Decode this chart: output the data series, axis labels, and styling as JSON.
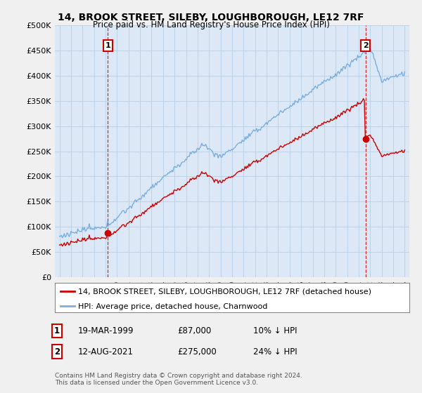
{
  "title": "14, BROOK STREET, SILEBY, LOUGHBOROUGH, LE12 7RF",
  "subtitle": "Price paid vs. HM Land Registry's House Price Index (HPI)",
  "legend_label_red": "14, BROOK STREET, SILEBY, LOUGHBOROUGH, LE12 7RF (detached house)",
  "legend_label_blue": "HPI: Average price, detached house, Charnwood",
  "footnote": "Contains HM Land Registry data © Crown copyright and database right 2024.\nThis data is licensed under the Open Government Licence v3.0.",
  "annotation1_label": "1",
  "annotation1_date": "19-MAR-1999",
  "annotation1_price": "£87,000",
  "annotation1_hpi": "10% ↓ HPI",
  "annotation2_label": "2",
  "annotation2_date": "12-AUG-2021",
  "annotation2_price": "£275,000",
  "annotation2_hpi": "24% ↓ HPI",
  "ylim": [
    0,
    500000
  ],
  "yticks": [
    0,
    50000,
    100000,
    150000,
    200000,
    250000,
    300000,
    350000,
    400000,
    450000,
    500000
  ],
  "ytick_labels": [
    "£0",
    "£50K",
    "£100K",
    "£150K",
    "£200K",
    "£250K",
    "£300K",
    "£350K",
    "£400K",
    "£450K",
    "£500K"
  ],
  "red_color": "#cc0000",
  "blue_color": "#7aafe0",
  "background_color": "#f0f0f0",
  "plot_bg_color": "#dce8f5",
  "grid_color": "#b8cfe8",
  "sale1_year": 1999.2,
  "sale1_price": 87000,
  "sale2_year": 2021.6,
  "sale2_price": 275000,
  "start_year": 1995,
  "end_year": 2025
}
